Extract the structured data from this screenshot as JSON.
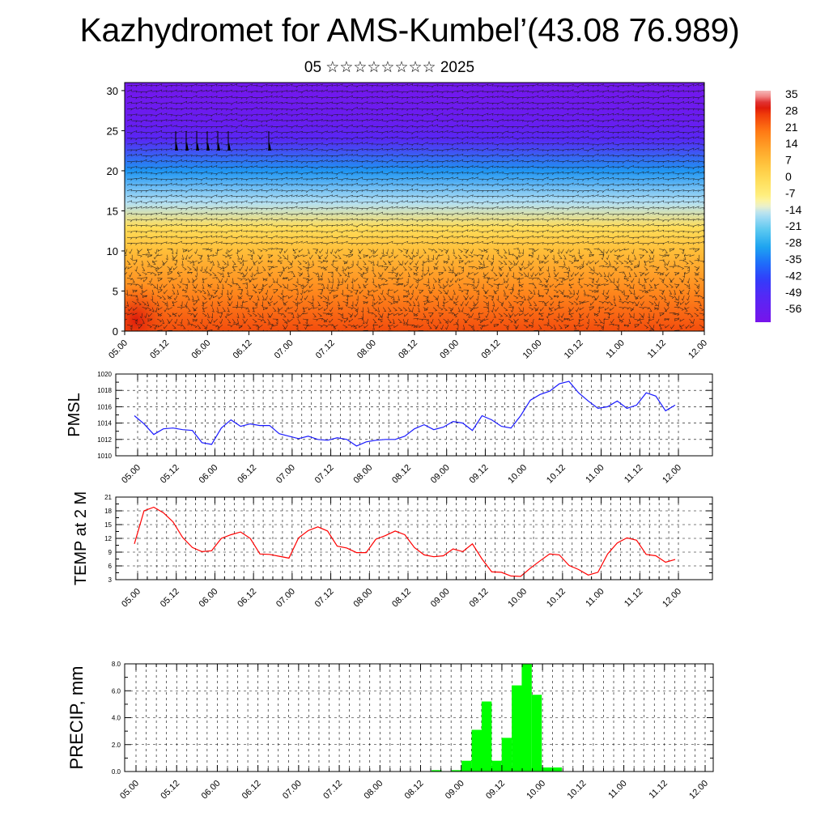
{
  "header": {
    "title": "Kazhydromet for AMS-Kumbel’(43.08 76.989)",
    "subtitle": "05 ☆☆☆☆☆☆☆☆ 2025"
  },
  "chart_data": [
    {
      "type": "heatmap",
      "title": "",
      "xlabel": "",
      "ylabel": "",
      "x_ticks": [
        "05.00",
        "05.12",
        "06.00",
        "06.12",
        "07.00",
        "07.12",
        "08.00",
        "08.12",
        "09.00",
        "09.12",
        "10.00",
        "10.12",
        "11.00",
        "11.12",
        "12.00"
      ],
      "y_ticks": [
        0,
        5,
        10,
        15,
        20,
        25,
        30
      ],
      "ylim": [
        0,
        31
      ],
      "colorbar_labels": [
        "35",
        "28",
        "21",
        "14",
        "7",
        "0",
        "-7",
        "-14",
        "-21",
        "-28",
        "-35",
        "-42",
        "-49",
        "-56"
      ],
      "colorbar_range": [
        -60,
        38
      ],
      "value_layers": [
        {
          "level": 0,
          "temperature": 26
        },
        {
          "level": 5,
          "temperature": 18
        },
        {
          "level": 10,
          "temperature": 8
        },
        {
          "level": 13,
          "temperature": 0
        },
        {
          "level": 16,
          "temperature": -14
        },
        {
          "level": 20,
          "temperature": -30
        },
        {
          "level": 24,
          "temperature": -50
        },
        {
          "level": 26,
          "temperature": -55
        },
        {
          "level": 30,
          "temperature": -58
        }
      ],
      "overlay": "wind barbs",
      "grid": false
    },
    {
      "type": "line",
      "ylabel": "PMSL",
      "color": "#1a1aff",
      "ylim": [
        1010,
        1020
      ],
      "y_ticks": [
        "1010",
        "1012",
        "1014",
        "1016",
        "1018",
        "1020"
      ],
      "x_ticks": [
        "05.00",
        "05.12",
        "06.00",
        "06.12",
        "07.00",
        "07.12",
        "08.00",
        "08.12",
        "09.00",
        "09.12",
        "10.00",
        "10.12",
        "11.00",
        "11.12",
        "12.00"
      ],
      "grid": true,
      "values": [
        1014.9,
        1013.9,
        1012.6,
        1013.3,
        1013.4,
        1013.2,
        1013.1,
        1011.6,
        1011.4,
        1013.4,
        1014.4,
        1013.6,
        1013.9,
        1013.7,
        1013.7,
        1012.7,
        1012.4,
        1012.1,
        1012.4,
        1012.0,
        1011.9,
        1012.2,
        1012.0,
        1011.2,
        1011.7,
        1011.9,
        1012.0,
        1012.0,
        1012.4,
        1013.3,
        1013.8,
        1013.2,
        1013.5,
        1014.2,
        1014.0,
        1013.1,
        1014.9,
        1014.4,
        1013.6,
        1013.4,
        1014.9,
        1016.8,
        1017.5,
        1017.9,
        1018.8,
        1019.1,
        1017.7,
        1016.7,
        1015.8,
        1016.0,
        1016.7,
        1015.8,
        1016.2,
        1017.7,
        1017.3,
        1015.5,
        1016.2
      ]
    },
    {
      "type": "line",
      "ylabel": "TEMP at 2 M",
      "color": "#ff0000",
      "ylim": [
        3,
        21
      ],
      "y_ticks": [
        "3",
        "6",
        "9",
        "12",
        "15",
        "18",
        "21"
      ],
      "x_ticks": [
        "05.00",
        "05.12",
        "06.00",
        "06.12",
        "07.00",
        "07.12",
        "08.00",
        "08.12",
        "09.00",
        "09.12",
        "10.00",
        "10.12",
        "11.00",
        "11.12",
        "12.00"
      ],
      "grid": true,
      "values": [
        10.8,
        18.0,
        18.8,
        17.6,
        15.6,
        12.2,
        10.0,
        9.1,
        9.3,
        12.0,
        12.8,
        13.4,
        12.0,
        8.6,
        8.5,
        8.1,
        7.7,
        12.1,
        13.7,
        14.5,
        13.6,
        10.3,
        9.9,
        8.9,
        8.9,
        11.8,
        12.6,
        13.6,
        12.8,
        10.0,
        8.4,
        8.0,
        8.2,
        9.7,
        9.1,
        10.8,
        7.5,
        4.7,
        4.6,
        3.8,
        3.7,
        5.5,
        7.1,
        8.6,
        8.4,
        6.1,
        5.2,
        4.0,
        4.6,
        8.6,
        11.0,
        12.1,
        11.6,
        8.5,
        8.2,
        6.8,
        7.4
      ]
    },
    {
      "type": "bar",
      "ylabel": "PRECIP, mm",
      "color": "#00ff00",
      "ylim": [
        0,
        8
      ],
      "y_ticks": [
        "0.0",
        "2.0",
        "4.0",
        "6.0",
        "8.0"
      ],
      "x_ticks": [
        "05.00",
        "05.12",
        "06.00",
        "06.12",
        "07.00",
        "07.12",
        "08.00",
        "08.12",
        "09.00",
        "09.12",
        "10.00",
        "10.12",
        "11.00",
        "11.12",
        "12.00"
      ],
      "grid": true,
      "values": [
        0,
        0,
        0,
        0,
        0,
        0,
        0,
        0,
        0,
        0,
        0,
        0,
        0,
        0,
        0,
        0,
        0,
        0,
        0,
        0,
        0,
        0,
        0,
        0,
        0,
        0,
        0,
        0,
        0,
        0,
        0.1,
        0,
        0.1,
        0.8,
        3.1,
        5.2,
        0.8,
        2.5,
        6.4,
        8.0,
        5.7,
        0.3,
        0.3,
        0,
        0,
        0,
        0,
        0,
        0,
        0,
        0,
        0,
        0,
        0,
        0,
        0,
        0
      ]
    }
  ]
}
